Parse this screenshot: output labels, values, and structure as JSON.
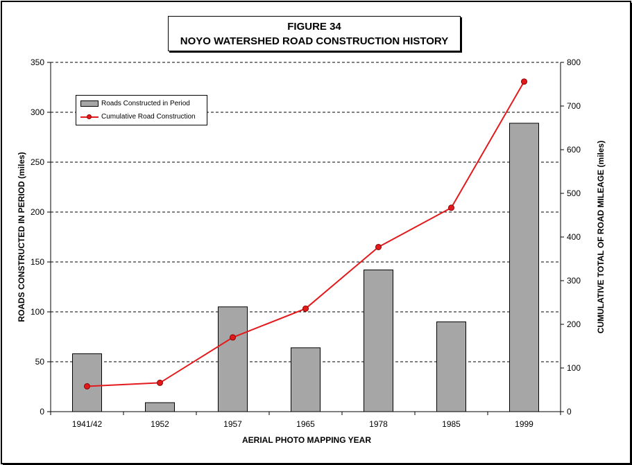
{
  "title": {
    "line1": "FIGURE 34",
    "line2": "NOYO WATERSHED ROAD CONSTRUCTION HISTORY"
  },
  "chart_data": {
    "type": "bar",
    "categories": [
      "1941/42",
      "1952",
      "1957",
      "1965",
      "1978",
      "1985",
      "1999"
    ],
    "series": [
      {
        "name": "Roads Constructed in Period",
        "type": "bar",
        "axis": "left",
        "color": "#a6a6a6",
        "values": [
          58,
          9,
          105,
          64,
          142,
          90,
          289
        ]
      },
      {
        "name": "Cumulative Road Construction",
        "type": "line",
        "axis": "right",
        "color": "#e31a1c",
        "values": [
          58,
          66,
          170,
          236,
          377,
          467,
          756
        ]
      }
    ],
    "xlabel": "AERIAL PHOTO MAPPING YEAR",
    "ylabel": "ROADS CONSTRUCTED IN PERIOD  (miles)",
    "y2label": "CUMULATIVE TOTAL OF ROAD MILEAGE  (miles)",
    "ylim": [
      0,
      350
    ],
    "yticks": [
      0,
      50,
      100,
      150,
      200,
      250,
      300,
      350
    ],
    "y2lim": [
      0,
      800
    ],
    "y2ticks": [
      0,
      100,
      200,
      300,
      400,
      500,
      600,
      700,
      800
    ],
    "grid": "horizontal dashed",
    "legend_position": "top-left"
  }
}
